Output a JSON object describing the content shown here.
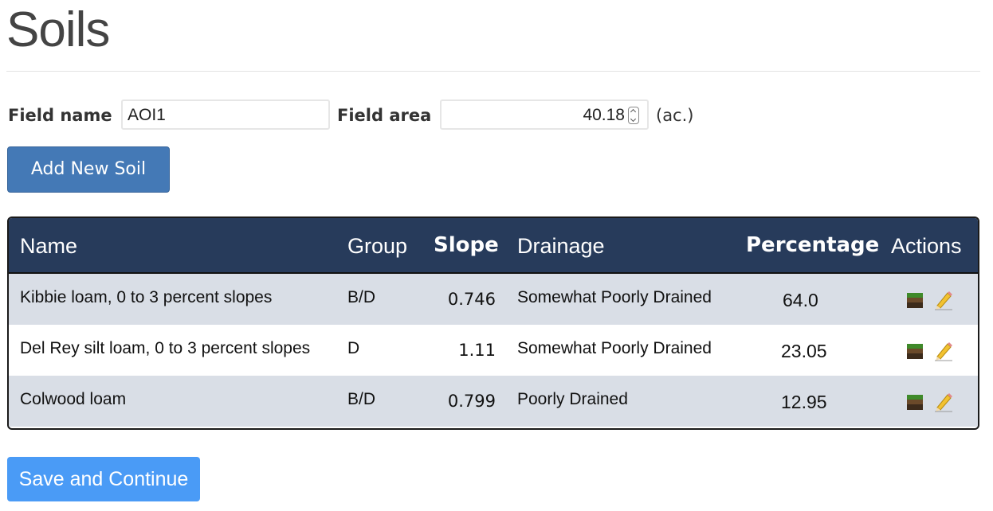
{
  "page": {
    "title": "Soils"
  },
  "field": {
    "name_label": "Field name",
    "name_value": "AOI1",
    "area_label": "Field area",
    "area_value": "40.18",
    "area_unit": "(ac.)"
  },
  "buttons": {
    "add_soil": "Add New Soil",
    "save_continue": "Save and Continue"
  },
  "table": {
    "headers": {
      "name": "Name",
      "group": "Group",
      "slope": "Slope",
      "drainage": "Drainage",
      "percentage": "Percentage",
      "actions": "Actions"
    },
    "rows": [
      {
        "name": "Kibbie loam, 0 to 3 percent slopes",
        "group": "B/D",
        "slope": "0.746",
        "drainage": "Somewhat Poorly Drained",
        "percentage": "64.0"
      },
      {
        "name": "Del Rey silt loam, 0 to 3 percent slopes",
        "group": "D",
        "slope": "1.11",
        "drainage": "Somewhat Poorly Drained",
        "percentage": "23.05"
      },
      {
        "name": "Colwood loam",
        "group": "B/D",
        "slope": "0.799",
        "drainage": "Poorly Drained",
        "percentage": "12.95"
      }
    ],
    "row_icons": [
      "soil-layers-icon",
      "pencil-icon"
    ]
  },
  "colors": {
    "header_bg": "#273b5b",
    "row_alt_bg": "#d9dee6",
    "add_button": "#4479b6",
    "save_button": "#4a9bf6"
  }
}
